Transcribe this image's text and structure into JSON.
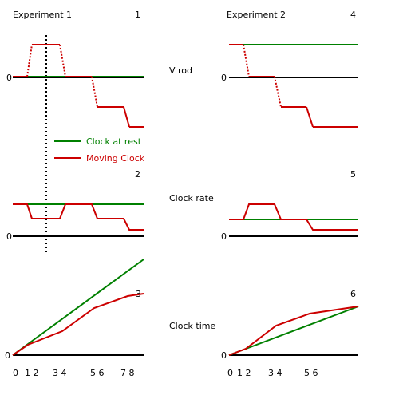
{
  "experiment1": {
    "title": "Experiment 1"
  },
  "experiment2": {
    "title": "Experiment 2"
  },
  "row_labels": {
    "v_rod": "V rod",
    "clock_rate": "Clock rate",
    "clock_time": "Clock time"
  },
  "panel_numbers": [
    "1",
    "2",
    "3",
    "4",
    "5",
    "6"
  ],
  "zero_label": "0",
  "legend": {
    "rest": "Clock at rest",
    "moving": "Moving Clock"
  },
  "colors": {
    "rest": "#008000",
    "moving": "#cc0000",
    "axis": "#000000"
  },
  "x_ticks_left": [
    "0",
    "1 2",
    "3 4",
    "5 6",
    "7 8"
  ],
  "x_ticks_right": [
    "0",
    "1 2",
    "3 4",
    "5 6"
  ],
  "chart_data": [
    {
      "type": "line",
      "panel": "1",
      "ylabel": "V rod",
      "xlim": [
        0,
        9
      ],
      "ylim": [
        -2,
        1
      ],
      "series": [
        {
          "name": "Clock at rest",
          "x": [
            0,
            9
          ],
          "y": [
            0,
            0
          ]
        },
        {
          "name": "Moving Clock",
          "x": [
            0,
            1,
            1.2,
            2.9,
            3.2,
            4.9,
            5.1,
            7.9,
            8.1,
            9
          ],
          "y": [
            0,
            0,
            1,
            1,
            0,
            0,
            -1,
            -1,
            -1.6,
            -1.6
          ]
        }
      ],
      "dotted_marker_x": 2.2
    },
    {
      "type": "line",
      "panel": "2",
      "ylabel": "Clock rate",
      "xlim": [
        0,
        9
      ],
      "ylim": [
        0,
        1
      ],
      "series": [
        {
          "name": "Clock at rest",
          "x": [
            0,
            9
          ],
          "y": [
            1,
            1
          ]
        },
        {
          "name": "Moving Clock",
          "x": [
            0,
            1,
            1.2,
            2.9,
            3.2,
            4.9,
            5.1,
            7.9,
            8.1,
            9
          ],
          "y": [
            1,
            1,
            0.5,
            0.5,
            1,
            1,
            0.5,
            0.5,
            0.2,
            0.2
          ]
        }
      ],
      "dotted_marker_x": 2.2
    },
    {
      "type": "line",
      "panel": "3",
      "ylabel": "Clock time",
      "xlim": [
        0,
        9
      ],
      "ylim": [
        0,
        1
      ],
      "series": [
        {
          "name": "Clock at rest",
          "x": [
            0,
            9
          ],
          "y": [
            0,
            1
          ]
        },
        {
          "name": "Moving Clock",
          "x": [
            0,
            1,
            3.2,
            5.5,
            8,
            9
          ],
          "y": [
            0,
            0.1,
            0.25,
            0.5,
            0.64,
            0.66
          ]
        }
      ]
    },
    {
      "type": "line",
      "panel": "4",
      "ylabel": "V rod",
      "xlim": [
        0,
        9
      ],
      "ylim": [
        -2,
        1
      ],
      "series": [
        {
          "name": "Clock at rest",
          "x": [
            0,
            9
          ],
          "y": [
            1,
            1
          ]
        },
        {
          "name": "Moving Clock",
          "x": [
            0,
            1,
            1.2,
            3.0,
            3.5,
            5.5,
            5.8,
            9
          ],
          "y": [
            1,
            1,
            0,
            0,
            -1,
            -1,
            -1.6,
            -1.6
          ]
        }
      ]
    },
    {
      "type": "line",
      "panel": "5",
      "ylabel": "Clock rate",
      "xlim": [
        0,
        9
      ],
      "ylim": [
        0,
        1
      ],
      "series": [
        {
          "name": "Clock at rest",
          "x": [
            0,
            9
          ],
          "y": [
            1,
            1
          ]
        },
        {
          "name": "Moving Clock",
          "x": [
            0,
            1,
            1.2,
            3.0,
            3.5,
            5.5,
            5.8,
            9
          ],
          "y": [
            1,
            1,
            2,
            2,
            1,
            1,
            0.4,
            0.4
          ]
        }
      ]
    },
    {
      "type": "line",
      "panel": "6",
      "ylabel": "Clock time",
      "xlim": [
        0,
        9
      ],
      "ylim": [
        0,
        1
      ],
      "series": [
        {
          "name": "Clock at rest",
          "x": [
            0,
            9
          ],
          "y": [
            0,
            1
          ]
        },
        {
          "name": "Moving Clock",
          "x": [
            0,
            1,
            3.5,
            5.5,
            9
          ],
          "y": [
            0,
            0.1,
            0.6,
            0.85,
            1
          ]
        }
      ]
    }
  ]
}
